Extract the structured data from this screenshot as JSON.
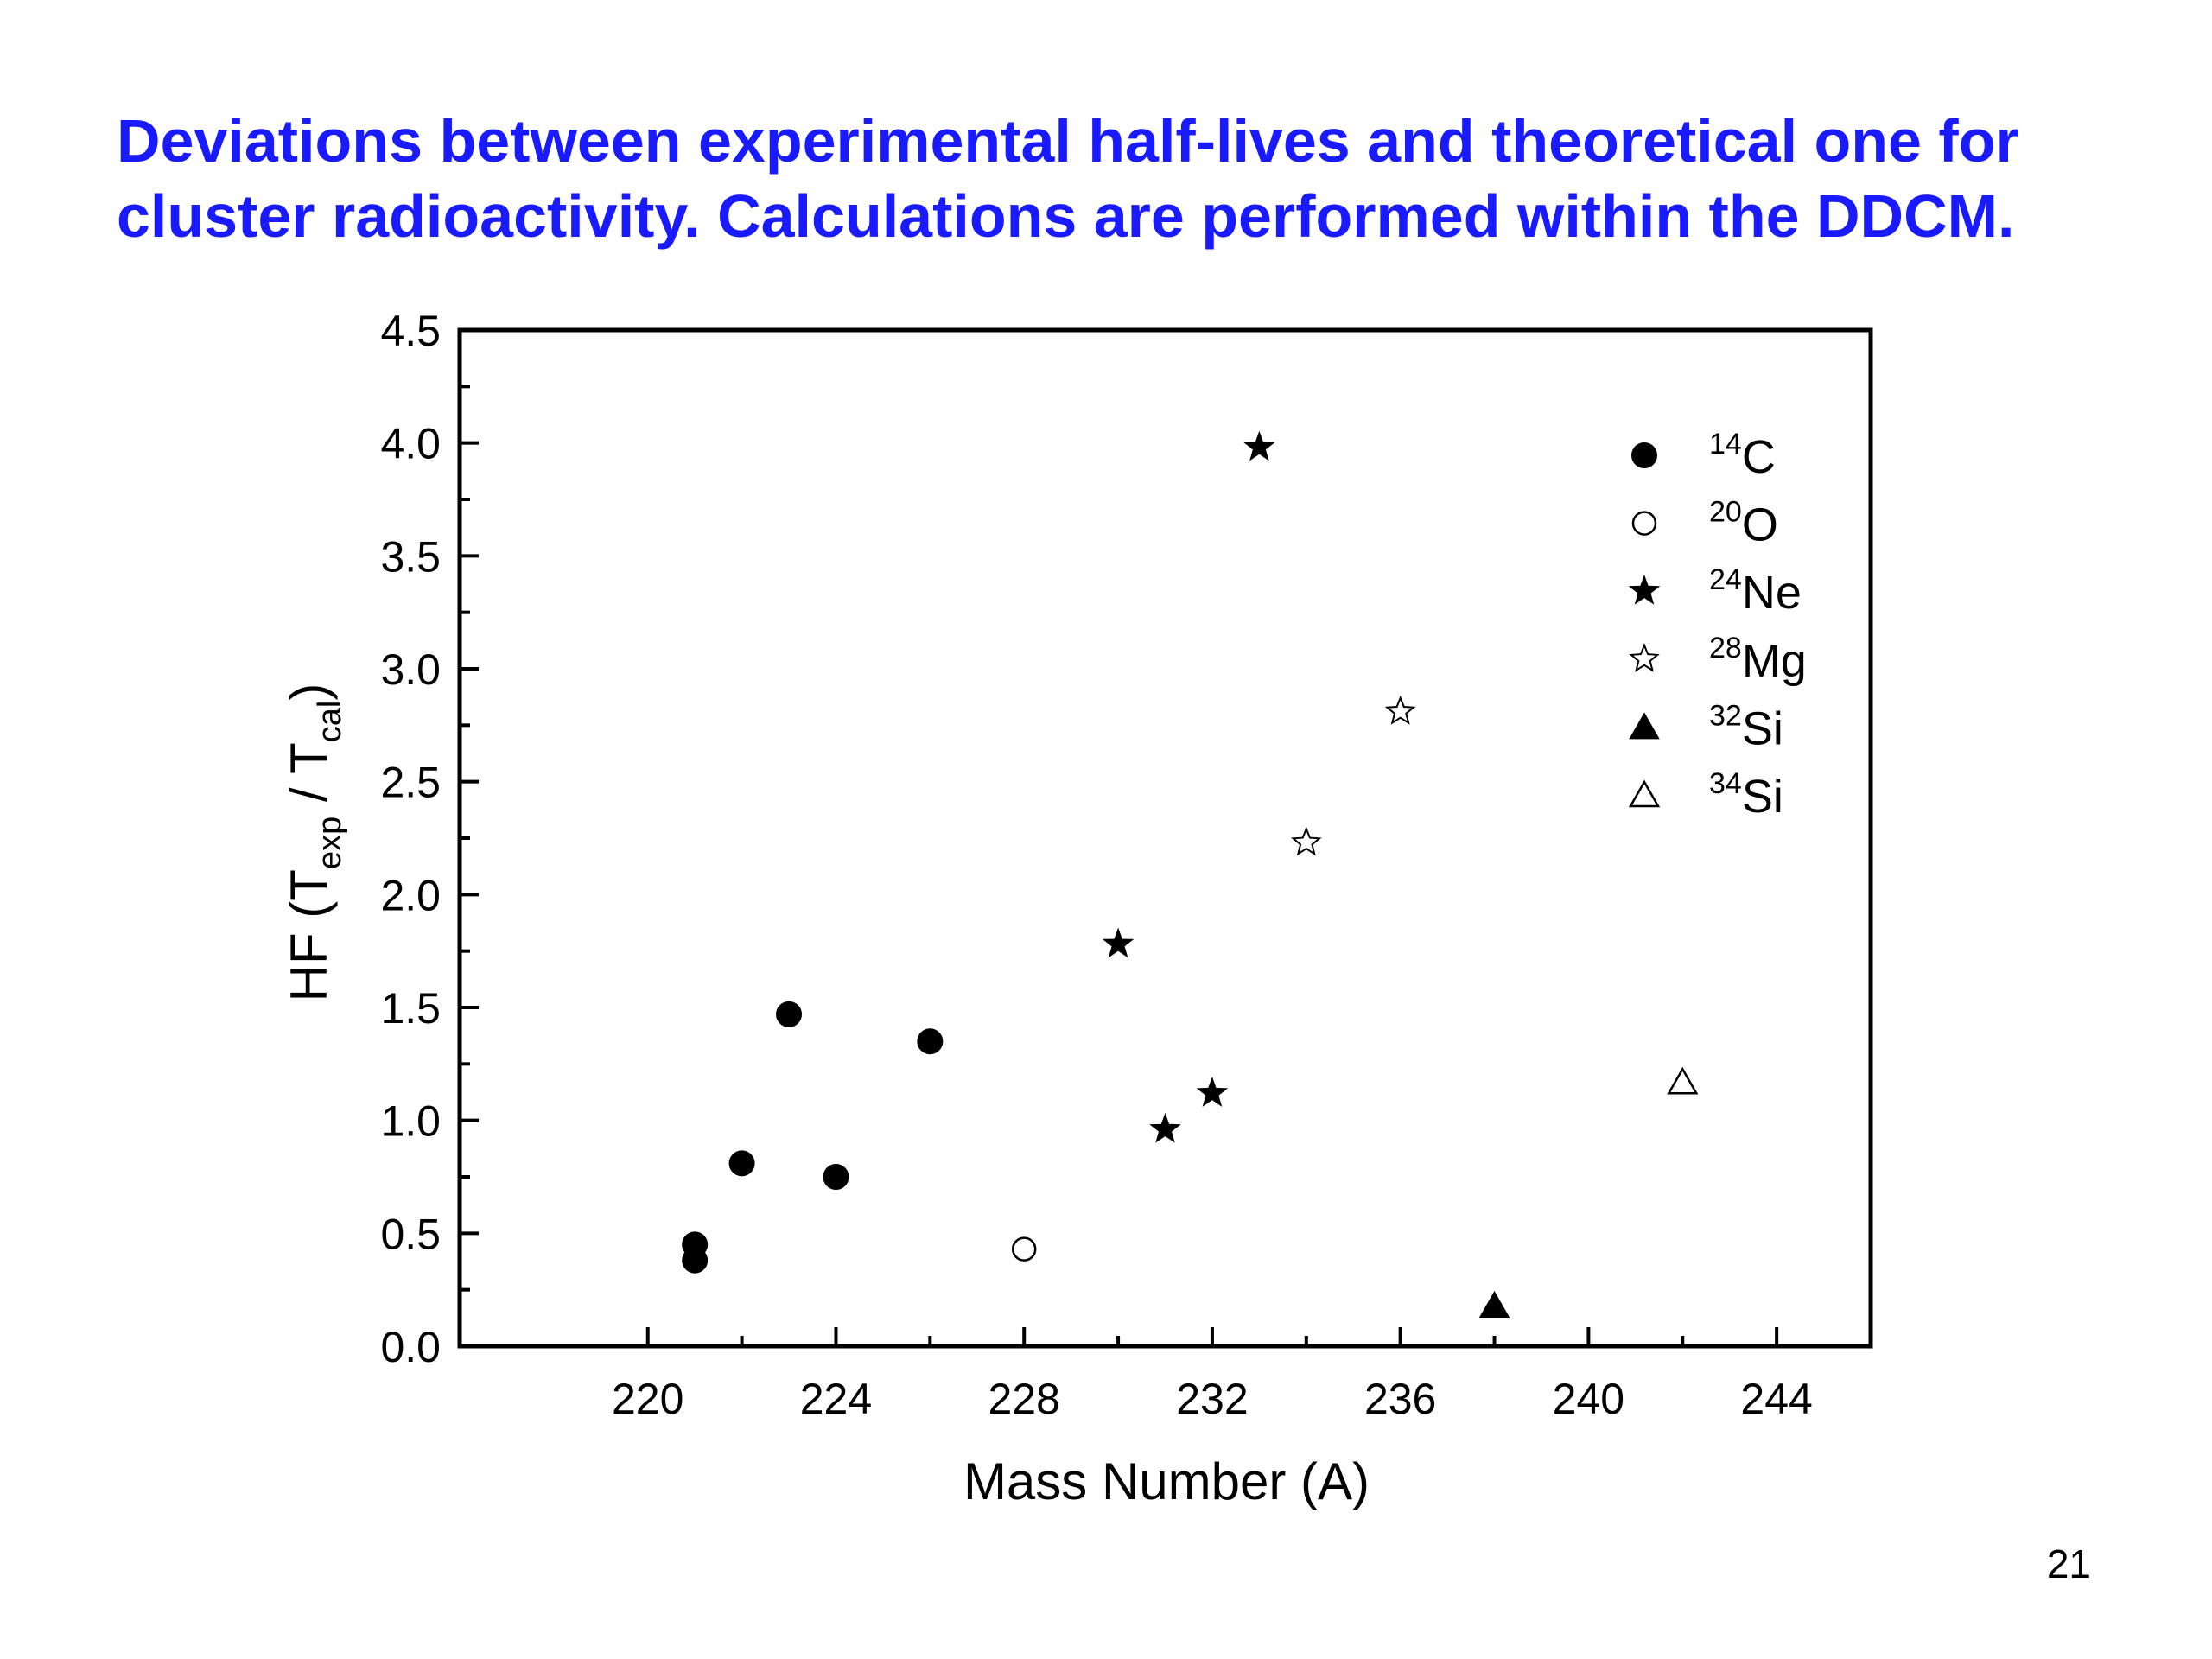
{
  "slide": {
    "title_line1": "Deviations between experimental half-lives and theoretical one for",
    "title_line2": "cluster radioactivity. Calculations are performed within the DDCM.",
    "page_number": "21",
    "title_color": "#1a1aff"
  },
  "chart_data": {
    "type": "scatter",
    "title": "",
    "xlabel": "Mass Number (A)",
    "ylabel": {
      "base": "HF (T",
      "sub1": "exp",
      "mid": " / T",
      "sub2": "cal",
      "end": ")"
    },
    "xlim": [
      216,
      246
    ],
    "ylim": [
      0,
      4.5
    ],
    "x_ticks": [
      220,
      224,
      228,
      232,
      236,
      240,
      244
    ],
    "y_ticks": [
      0.0,
      0.5,
      1.0,
      1.5,
      2.0,
      2.5,
      3.0,
      3.5,
      4.0,
      4.5
    ],
    "grid": false,
    "legend_position": "top-right",
    "series": [
      {
        "name": "C",
        "mass": "14",
        "marker": "circle-filled",
        "points": [
          [
            221,
            0.45
          ],
          [
            221,
            0.38
          ],
          [
            222,
            0.81
          ],
          [
            223,
            1.47
          ],
          [
            224,
            0.75
          ],
          [
            226,
            1.35
          ]
        ]
      },
      {
        "name": "O",
        "mass": "20",
        "marker": "circle-open",
        "points": [
          [
            228,
            0.43
          ]
        ]
      },
      {
        "name": "Ne",
        "mass": "24",
        "marker": "star-filled",
        "points": [
          [
            230,
            1.78
          ],
          [
            231,
            0.96
          ],
          [
            232,
            1.12
          ],
          [
            233,
            3.98
          ]
        ]
      },
      {
        "name": "Mg",
        "mass": "28",
        "marker": "star-open",
        "points": [
          [
            234,
            2.23
          ],
          [
            236,
            2.81
          ]
        ]
      },
      {
        "name": "Si",
        "mass": "32",
        "marker": "triangle-filled",
        "points": [
          [
            238,
            0.18
          ]
        ]
      },
      {
        "name": "Si",
        "mass": "34",
        "marker": "triangle-open",
        "points": [
          [
            242,
            1.17
          ]
        ]
      }
    ]
  }
}
